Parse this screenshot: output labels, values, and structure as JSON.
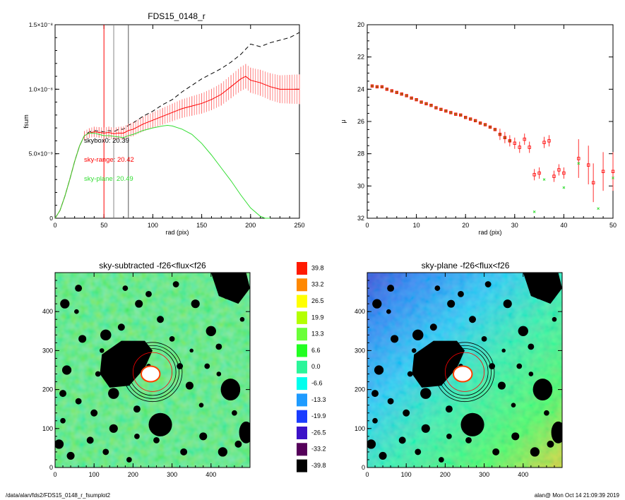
{
  "footer": {
    "path": "/data/alan/fds2/FDS15_0148_r_fsumplot2",
    "user_time": "alan@  Mon Oct 14 21:09:39 2019"
  },
  "colors": {
    "range": "#ff0000",
    "plane": "#33dd33",
    "black": "#000000"
  },
  "chart_data": [
    {
      "type": "line",
      "title": "FDS15_0148_r",
      "xlabel": "rad (pix)",
      "ylabel": "fsum",
      "xlim": [
        0,
        250
      ],
      "ylim": [
        0,
        1.5e-08
      ],
      "x_ticks": [
        "0",
        "50",
        "100",
        "150",
        "200",
        "250"
      ],
      "y_ticks": [
        "0",
        "5.0×10⁻⁹",
        "1.0×10⁻⁸",
        "1.5×10⁻⁸"
      ],
      "vlines": [
        50,
        60,
        75
      ],
      "annotations": [
        {
          "text": "skybox0: 20.39",
          "color": "black"
        },
        {
          "text": "sky-range: 20.42",
          "color": "red"
        },
        {
          "text": "sky-plane: 20.49",
          "color": "green"
        }
      ],
      "series": [
        {
          "style": "dashed",
          "color": "black",
          "x": [
            0,
            5,
            10,
            15,
            20,
            25,
            30,
            35,
            40,
            45,
            50,
            55,
            60,
            65,
            70,
            75,
            80,
            90,
            100,
            110,
            120,
            130,
            140,
            150,
            160,
            170,
            180,
            190,
            200,
            210,
            220,
            230,
            240,
            250
          ],
          "y": [
            0,
            6e-10,
            1.7e-09,
            3e-09,
            4.4e-09,
            5.6e-09,
            6.4e-09,
            6.7e-09,
            6.8e-09,
            6.75e-09,
            6.7e-09,
            6.8e-09,
            6.7e-09,
            6.9e-09,
            6.9e-09,
            7.2e-09,
            7.4e-09,
            7.9e-09,
            8.3e-09,
            8.8e-09,
            9.2e-09,
            9.8e-09,
            1.03e-08,
            1.08e-08,
            1.12e-08,
            1.16e-08,
            1.21e-08,
            1.27e-08,
            1.35e-08,
            1.33e-08,
            1.36e-08,
            1.38e-08,
            1.4e-08,
            1.44e-08
          ]
        },
        {
          "style": "solid-errorbars",
          "color": "red",
          "x": [
            0,
            5,
            10,
            15,
            20,
            25,
            30,
            35,
            40,
            45,
            50,
            55,
            60,
            65,
            70,
            75,
            80,
            90,
            100,
            110,
            120,
            130,
            140,
            150,
            160,
            170,
            180,
            190,
            195,
            200,
            210,
            220,
            230,
            240,
            250
          ],
          "y": [
            0,
            6e-10,
            1.7e-09,
            3e-09,
            4.4e-09,
            5.6e-09,
            6.4e-09,
            6.6e-09,
            6.7e-09,
            6.65e-09,
            6.6e-09,
            6.65e-09,
            6.55e-09,
            6.6e-09,
            6.6e-09,
            6.8e-09,
            6.9e-09,
            7.3e-09,
            7.6e-09,
            7.9e-09,
            8.2e-09,
            8.5e-09,
            8.7e-09,
            8.9e-09,
            9.2e-09,
            9.6e-09,
            1.02e-08,
            1.08e-08,
            1.1e-08,
            1.07e-08,
            1.05e-08,
            1.02e-08,
            1e-08,
            1e-08,
            1e-08
          ]
        },
        {
          "style": "solid",
          "color": "green",
          "x": [
            0,
            5,
            10,
            15,
            20,
            25,
            30,
            35,
            40,
            45,
            50,
            55,
            60,
            65,
            70,
            75,
            80,
            90,
            100,
            110,
            115,
            120,
            130,
            140,
            150,
            160,
            170,
            180,
            190,
            200,
            210,
            215,
            220
          ],
          "y": [
            0,
            6e-10,
            1.7e-09,
            3e-09,
            4.4e-09,
            5.6e-09,
            6.4e-09,
            6.6e-09,
            6.6e-09,
            6.5e-09,
            6.4e-09,
            6.4e-09,
            6.35e-09,
            6.3e-09,
            6.25e-09,
            6.4e-09,
            6.5e-09,
            6.8e-09,
            7e-09,
            7.15e-09,
            7.2e-09,
            7.15e-09,
            6.9e-09,
            6.5e-09,
            5.8e-09,
            4.9e-09,
            3.9e-09,
            2.9e-09,
            1.8e-09,
            8e-10,
            1.5e-10,
            0.0,
            0.0
          ]
        }
      ]
    },
    {
      "type": "scatter",
      "xlabel": "rad (pix)",
      "ylabel": "μ",
      "xlim": [
        0,
        50
      ],
      "ylim": [
        32,
        20
      ],
      "x_ticks": [
        "0",
        "10",
        "20",
        "30",
        "40",
        "50"
      ],
      "y_ticks": [
        "20",
        "22",
        "24",
        "26",
        "28",
        "30",
        "32"
      ],
      "series": [
        {
          "marker": "square",
          "color": "red",
          "x": [
            1,
            2,
            3,
            4,
            5,
            6,
            7,
            8,
            9,
            10,
            11,
            12,
            13,
            14,
            15,
            16,
            17,
            18,
            19,
            20,
            21,
            22,
            23,
            24,
            25,
            26,
            27,
            28,
            29,
            30,
            31,
            32,
            33,
            34,
            35,
            36,
            37,
            38,
            39,
            40,
            43,
            45,
            46,
            48,
            50
          ],
          "y": [
            23.8,
            23.85,
            23.85,
            24.0,
            24.1,
            24.2,
            24.3,
            24.4,
            24.55,
            24.65,
            24.8,
            24.9,
            25.0,
            25.15,
            25.25,
            25.35,
            25.45,
            25.55,
            25.6,
            25.75,
            25.85,
            25.95,
            26.1,
            26.2,
            26.35,
            26.5,
            26.8,
            27.0,
            27.2,
            27.35,
            27.6,
            27.1,
            27.6,
            29.3,
            29.2,
            27.3,
            27.2,
            29.4,
            29.0,
            29.2,
            28.3,
            28.7,
            29.8,
            29.1,
            29.1
          ]
        },
        {
          "marker": "cross",
          "color": "green",
          "x": [
            34,
            36,
            40,
            43,
            47,
            50
          ],
          "y": [
            31.6,
            29.6,
            30.1,
            28.6,
            31.4,
            29.5
          ]
        }
      ]
    },
    {
      "type": "heatmap",
      "title": "sky-subtracted -f26<flux<f26",
      "xlim": [
        0,
        500
      ],
      "ylim": [
        0,
        500
      ],
      "x_ticks": [
        "0",
        "100",
        "200",
        "300",
        "400"
      ],
      "y_ticks": [
        "0",
        "100",
        "200",
        "300",
        "400"
      ]
    },
    {
      "type": "heatmap",
      "title": "sky-plane -f26<flux<f26",
      "xlim": [
        0,
        500
      ],
      "ylim": [
        0,
        500
      ],
      "x_ticks": [
        "0",
        "100",
        "200",
        "300",
        "400"
      ],
      "y_ticks": [
        "0",
        "100",
        "200",
        "300",
        "400"
      ]
    },
    {
      "type": "table",
      "name": "colorbar",
      "labels": [
        "39.8",
        "33.2",
        "26.5",
        "19.9",
        "13.3",
        "6.6",
        "0.0",
        "-6.6",
        "-13.3",
        "-19.9",
        "-26.5",
        "-33.2",
        "-39.8"
      ],
      "colors": [
        "#ff1a00",
        "#ff8800",
        "#ffff00",
        "#b4ff00",
        "#6aff38",
        "#22ff22",
        "#2bf59a",
        "#00ffee",
        "#1e9bff",
        "#1a3cff",
        "#3c12c8",
        "#55005a",
        "#000000"
      ]
    }
  ]
}
